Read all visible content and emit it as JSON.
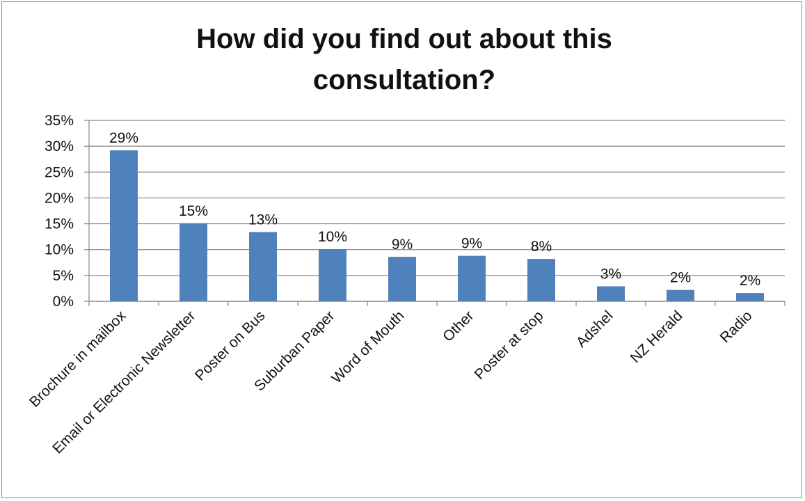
{
  "chart_data": {
    "type": "bar",
    "title_lines": [
      "How did you find out about this",
      "consultation?"
    ],
    "categories": [
      "Brochure in mailbox",
      "Email or Electronic Newsletter",
      "Poster on Bus",
      "Suburban Paper",
      "Word of Mouth",
      "Other",
      "Poster at stop",
      "Adshel",
      "NZ Herald",
      "Radio"
    ],
    "values": [
      29.2,
      15.1,
      13.4,
      10.1,
      8.6,
      8.8,
      8.2,
      2.9,
      2.2,
      1.6
    ],
    "data_labels": [
      "29%",
      "15%",
      "13%",
      "10%",
      "9%",
      "9%",
      "8%",
      "3%",
      "2%",
      "2%"
    ],
    "y_ticks": [
      0,
      5,
      10,
      15,
      20,
      25,
      30,
      35
    ],
    "y_tick_labels": [
      "0%",
      "5%",
      "10%",
      "15%",
      "20%",
      "25%",
      "30%",
      "35%"
    ],
    "ylim": [
      0,
      35
    ],
    "grid": true,
    "legend": "none",
    "bar_color": "#4f81bd",
    "grid_color": "#868686"
  }
}
